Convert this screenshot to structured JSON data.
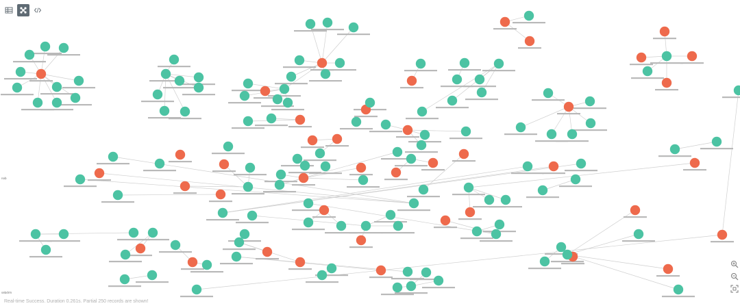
{
  "toolbar": {
    "icons": [
      "table-view-icon",
      "graph-view-icon",
      "code-view-icon"
    ],
    "active": "graph-view-icon"
  },
  "colors": {
    "person_node": "#ee6a4c",
    "company_node": "#4cc3a3",
    "edge": "#cfcfcf",
    "active_button": "#5f6b74"
  },
  "side_labels": {
    "left_mid": "nob",
    "left_bottom": "sebdrm"
  },
  "status": {
    "text": "Real-time Success. Duration 0.261s. Partial 250 records are shown!"
  },
  "zoom": {
    "icons": [
      "zoom-in-icon",
      "zoom-out-icon",
      "fit-screen-icon"
    ]
  }
}
